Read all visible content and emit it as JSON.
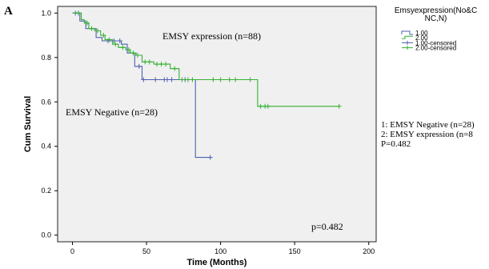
{
  "panel_label": "A",
  "legend": {
    "title": "Emsyexpression(No&CNC,N)",
    "title_lines": [
      "Emsyexpression(No&C",
      "NC,N)"
    ],
    "entries": [
      {
        "label": "1.00",
        "kind": "line",
        "color": "#4f5fb0"
      },
      {
        "label": "2.00",
        "kind": "line",
        "color": "#33b133"
      },
      {
        "label": "1.00-censored",
        "kind": "censor",
        "color": "#4f5fb0"
      },
      {
        "label": "2.00-censored",
        "kind": "censor",
        "color": "#33b133"
      }
    ]
  },
  "notes": [
    "1: EMSY Negative (n=28)",
    "2: EMSY expression (n=8",
    "P=0.482"
  ],
  "annotations": {
    "expression": "EMSY expression (n=88)",
    "negative": "EMSY Negative (n=28)",
    "pvalue": "p=0.482"
  },
  "colors": {
    "plot_bg": "#f0f0f0",
    "group1": "#4f5fb0",
    "group2": "#33b133"
  },
  "chart_data": {
    "type": "line",
    "subtype": "kaplan-meier",
    "xlabel": "Time (Months)",
    "ylabel": "Cum Survival",
    "xlim": [
      -10,
      205
    ],
    "ylim": [
      -0.03,
      1.03
    ],
    "xticks": [
      0,
      50,
      100,
      150,
      200
    ],
    "yticks": [
      0.0,
      0.2,
      0.4,
      0.6,
      0.8,
      1.0
    ],
    "ytick_labels": [
      "0.0",
      "0.2",
      "0.4",
      "0.6",
      "0.8",
      "1.0"
    ],
    "grid": false,
    "legend_position": "outside top-right",
    "series": [
      {
        "name": "1.00",
        "step_points": [
          [
            0,
            1.0
          ],
          [
            5,
            1.0
          ],
          [
            5,
            0.964
          ],
          [
            9,
            0.964
          ],
          [
            9,
            0.93
          ],
          [
            16,
            0.93
          ],
          [
            16,
            0.89
          ],
          [
            20,
            0.89
          ],
          [
            20,
            0.875
          ],
          [
            33,
            0.875
          ],
          [
            33,
            0.86
          ],
          [
            37,
            0.86
          ],
          [
            37,
            0.82
          ],
          [
            42,
            0.82
          ],
          [
            42,
            0.76
          ],
          [
            47,
            0.76
          ],
          [
            47,
            0.7
          ],
          [
            83,
            0.7
          ],
          [
            83,
            0.35
          ],
          [
            93,
            0.35
          ]
        ],
        "censored": [
          [
            2,
            1.0
          ],
          [
            4,
            1.0
          ],
          [
            24,
            0.875
          ],
          [
            28,
            0.875
          ],
          [
            32,
            0.875
          ],
          [
            45,
            0.76
          ],
          [
            48,
            0.7
          ],
          [
            56,
            0.7
          ],
          [
            62,
            0.7
          ],
          [
            64,
            0.7
          ],
          [
            67,
            0.7
          ],
          [
            76,
            0.7
          ],
          [
            93,
            0.35
          ]
        ]
      },
      {
        "name": "2.00",
        "step_points": [
          [
            0,
            1.0
          ],
          [
            6,
            1.0
          ],
          [
            6,
            0.97
          ],
          [
            8,
            0.97
          ],
          [
            8,
            0.955
          ],
          [
            11,
            0.955
          ],
          [
            11,
            0.93
          ],
          [
            15,
            0.93
          ],
          [
            15,
            0.92
          ],
          [
            19,
            0.92
          ],
          [
            19,
            0.9
          ],
          [
            22,
            0.9
          ],
          [
            22,
            0.88
          ],
          [
            27,
            0.88
          ],
          [
            27,
            0.86
          ],
          [
            31,
            0.86
          ],
          [
            31,
            0.845
          ],
          [
            36,
            0.845
          ],
          [
            36,
            0.835
          ],
          [
            39,
            0.835
          ],
          [
            39,
            0.82
          ],
          [
            43,
            0.82
          ],
          [
            43,
            0.81
          ],
          [
            47,
            0.81
          ],
          [
            47,
            0.78
          ],
          [
            55,
            0.78
          ],
          [
            55,
            0.77
          ],
          [
            66,
            0.77
          ],
          [
            66,
            0.75
          ],
          [
            72,
            0.75
          ],
          [
            72,
            0.7
          ],
          [
            125,
            0.7
          ],
          [
            125,
            0.58
          ],
          [
            180,
            0.58
          ]
        ],
        "censored": [
          [
            4,
            1.0
          ],
          [
            10,
            0.955
          ],
          [
            13,
            0.93
          ],
          [
            17,
            0.92
          ],
          [
            21,
            0.9
          ],
          [
            25,
            0.88
          ],
          [
            29,
            0.86
          ],
          [
            34,
            0.845
          ],
          [
            38,
            0.835
          ],
          [
            41,
            0.82
          ],
          [
            44,
            0.81
          ],
          [
            49,
            0.78
          ],
          [
            52,
            0.78
          ],
          [
            57,
            0.77
          ],
          [
            60,
            0.77
          ],
          [
            63,
            0.77
          ],
          [
            69,
            0.75
          ],
          [
            74,
            0.7
          ],
          [
            78,
            0.7
          ],
          [
            81,
            0.7
          ],
          [
            95,
            0.7
          ],
          [
            100,
            0.7
          ],
          [
            106,
            0.7
          ],
          [
            110,
            0.7
          ],
          [
            120,
            0.7
          ],
          [
            127,
            0.58
          ],
          [
            130,
            0.58
          ],
          [
            132,
            0.58
          ],
          [
            180,
            0.58
          ]
        ]
      }
    ]
  }
}
